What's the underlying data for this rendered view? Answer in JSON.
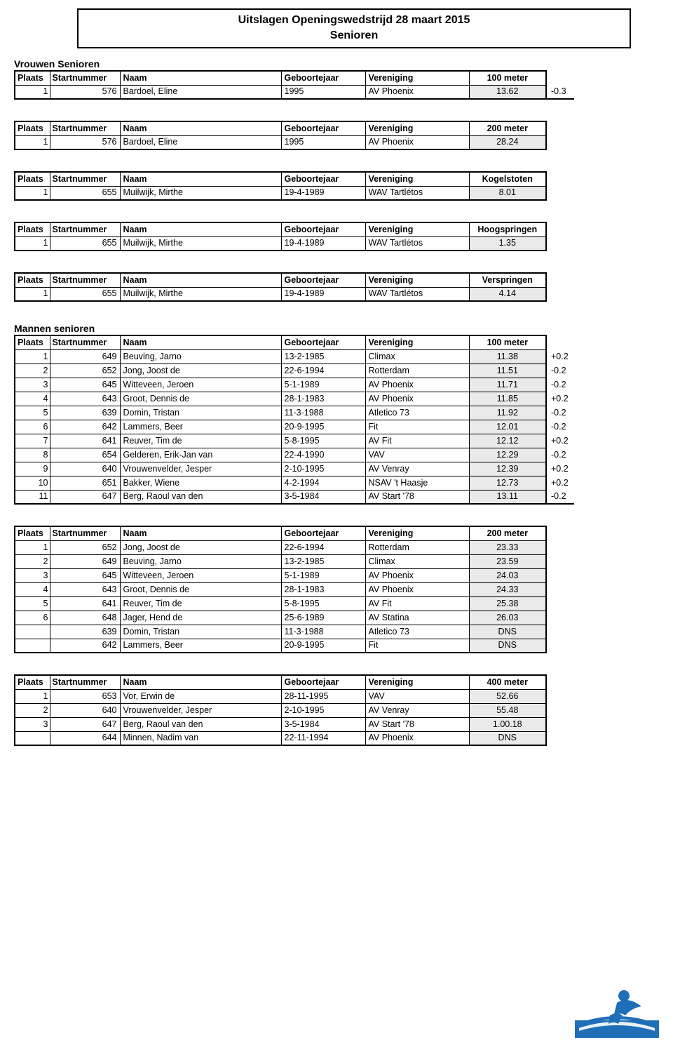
{
  "title_line1": "Uitslagen Openingswedstrijd 28 maart 2015",
  "title_line2": "Senioren",
  "cols": {
    "plaats": "Plaats",
    "start": "Startnummer",
    "naam": "Naam",
    "jaar": "Geboortejaar",
    "ver": "Vereniging"
  },
  "vrouwen_label": "Vrouwen Senioren",
  "mannen_label": "Mannen senioren",
  "tables": [
    {
      "event": "100 meter",
      "rows": [
        {
          "p": "1",
          "s": "576",
          "n": "Bardoel, Eline",
          "j": "1995",
          "v": "AV Phoenix",
          "r": "13.62",
          "w": "-0.3"
        }
      ]
    },
    {
      "event": "200 meter",
      "rows": [
        {
          "p": "1",
          "s": "576",
          "n": "Bardoel, Eline",
          "j": "1995",
          "v": "AV Phoenix",
          "r": "28.24",
          "w": ""
        }
      ]
    },
    {
      "event": "Kogelstoten",
      "rows": [
        {
          "p": "1",
          "s": "655",
          "n": "Muilwijk, Mirthe",
          "j": "19-4-1989",
          "v": "WAV Tartlétos",
          "r": "8.01",
          "w": ""
        }
      ]
    },
    {
      "event": "Hoogspringen",
      "rows": [
        {
          "p": "1",
          "s": "655",
          "n": "Muilwijk, Mirthe",
          "j": "19-4-1989",
          "v": "WAV Tartlétos",
          "r": "1.35",
          "w": ""
        }
      ]
    },
    {
      "event": "Verspringen",
      "rows": [
        {
          "p": "1",
          "s": "655",
          "n": "Muilwijk, Mirthe",
          "j": "19-4-1989",
          "v": "WAV Tartlétos",
          "r": "4.14",
          "w": ""
        }
      ]
    },
    {
      "event": "100 meter",
      "rows": [
        {
          "p": "1",
          "s": "649",
          "n": "Beuving, Jarno",
          "j": "13-2-1985",
          "v": "Climax",
          "r": "11.38",
          "w": "+0.2"
        },
        {
          "p": "2",
          "s": "652",
          "n": "Jong, Joost de",
          "j": "22-6-1994",
          "v": "Rotterdam",
          "r": "11.51",
          "w": "-0.2"
        },
        {
          "p": "3",
          "s": "645",
          "n": "Witteveen, Jeroen",
          "j": "5-1-1989",
          "v": "AV Phoenix",
          "r": "11.71",
          "w": "-0.2"
        },
        {
          "p": "4",
          "s": "643",
          "n": "Groot, Dennis de",
          "j": "28-1-1983",
          "v": "AV Phoenix",
          "r": "11.85",
          "w": "+0.2"
        },
        {
          "p": "5",
          "s": "639",
          "n": "Domin, Tristan",
          "j": "11-3-1988",
          "v": "Atletico 73",
          "r": "11.92",
          "w": "-0.2"
        },
        {
          "p": "6",
          "s": "642",
          "n": "Lammers, Beer",
          "j": "20-9-1995",
          "v": "Fit",
          "r": "12.01",
          "w": "-0.2"
        },
        {
          "p": "7",
          "s": "641",
          "n": "Reuver, Tim de",
          "j": "5-8-1995",
          "v": "AV Fit",
          "r": "12.12",
          "w": "+0.2"
        },
        {
          "p": "8",
          "s": "654",
          "n": "Gelderen, Erik-Jan van",
          "j": "22-4-1990",
          "v": "VAV",
          "r": "12.29",
          "w": "-0.2"
        },
        {
          "p": "9",
          "s": "640",
          "n": "Vrouwenvelder, Jesper",
          "j": "2-10-1995",
          "v": "AV Venray",
          "r": "12.39",
          "w": "+0.2"
        },
        {
          "p": "10",
          "s": "651",
          "n": "Bakker, Wiene",
          "j": "4-2-1994",
          "v": "NSAV 't Haasje",
          "r": "12.73",
          "w": "+0.2"
        },
        {
          "p": "11",
          "s": "647",
          "n": "Berg, Raoul van den",
          "j": "3-5-1984",
          "v": "AV Start '78",
          "r": "13.11",
          "w": "-0.2"
        }
      ]
    },
    {
      "event": "200 meter",
      "rows": [
        {
          "p": "1",
          "s": "652",
          "n": "Jong, Joost de",
          "j": "22-6-1994",
          "v": "Rotterdam",
          "r": "23.33",
          "w": ""
        },
        {
          "p": "2",
          "s": "649",
          "n": "Beuving, Jarno",
          "j": "13-2-1985",
          "v": "Climax",
          "r": "23.59",
          "w": ""
        },
        {
          "p": "3",
          "s": "645",
          "n": "Witteveen, Jeroen",
          "j": "5-1-1989",
          "v": "AV Phoenix",
          "r": "24.03",
          "w": ""
        },
        {
          "p": "4",
          "s": "643",
          "n": "Groot, Dennis de",
          "j": "28-1-1983",
          "v": "AV Phoenix",
          "r": "24.33",
          "w": ""
        },
        {
          "p": "5",
          "s": "641",
          "n": "Reuver, Tim de",
          "j": "5-8-1995",
          "v": "AV Fit",
          "r": "25.38",
          "w": ""
        },
        {
          "p": "6",
          "s": "648",
          "n": "Jager, Hend de",
          "j": "25-6-1989",
          "v": "AV Statina",
          "r": "26.03",
          "w": ""
        },
        {
          "p": "",
          "s": "639",
          "n": "Domin, Tristan",
          "j": "11-3-1988",
          "v": "Atletico 73",
          "r": "DNS",
          "w": ""
        },
        {
          "p": "",
          "s": "642",
          "n": "Lammers, Beer",
          "j": "20-9-1995",
          "v": "Fit",
          "r": "DNS",
          "w": ""
        }
      ]
    },
    {
      "event": "400 meter",
      "rows": [
        {
          "p": "1",
          "s": "653",
          "n": "Vor, Erwin de",
          "j": "28-11-1995",
          "v": "VAV",
          "r": "52.66",
          "w": ""
        },
        {
          "p": "2",
          "s": "640",
          "n": "Vrouwenvelder, Jesper",
          "j": "2-10-1995",
          "v": "AV Venray",
          "r": "55.48",
          "w": ""
        },
        {
          "p": "3",
          "s": "647",
          "n": "Berg, Raoul van den",
          "j": "3-5-1984",
          "v": "AV Start '78",
          "r": "1.00.18",
          "w": ""
        },
        {
          "p": "",
          "s": "644",
          "n": "Minnen, Nadim van",
          "j": "22-11-1994",
          "v": "AV Phoenix",
          "r": "DNS",
          "w": ""
        }
      ]
    }
  ]
}
